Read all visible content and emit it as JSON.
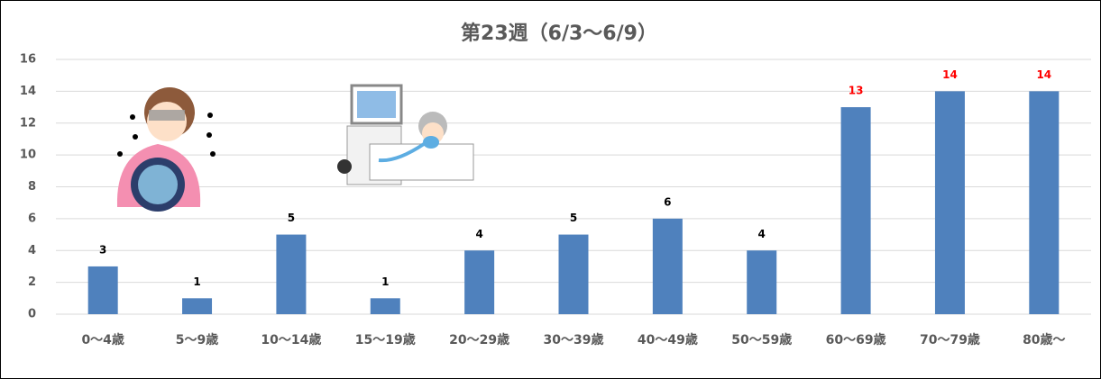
{
  "chart_data": {
    "type": "bar",
    "title": "第23週（6/3〜6/9）",
    "categories": [
      "0〜4歳",
      "5〜9歳",
      "10〜14歳",
      "15〜19歳",
      "20〜29歳",
      "30〜39歳",
      "40〜49歳",
      "50〜59歳",
      "60〜69歳",
      "70〜79歳",
      "80歳〜"
    ],
    "values": [
      3,
      1,
      5,
      1,
      4,
      5,
      6,
      4,
      13,
      14,
      14
    ],
    "color": "#4f81bd",
    "label_colors": [
      "#000000",
      "#000000",
      "#000000",
      "#000000",
      "#000000",
      "#000000",
      "#000000",
      "#000000",
      "#ff0000",
      "#ff0000",
      "#ff0000"
    ],
    "ylim": [
      0,
      16
    ],
    "yticks": [
      0,
      2,
      4,
      6,
      8,
      10,
      12,
      14,
      16
    ],
    "grid": true
  }
}
